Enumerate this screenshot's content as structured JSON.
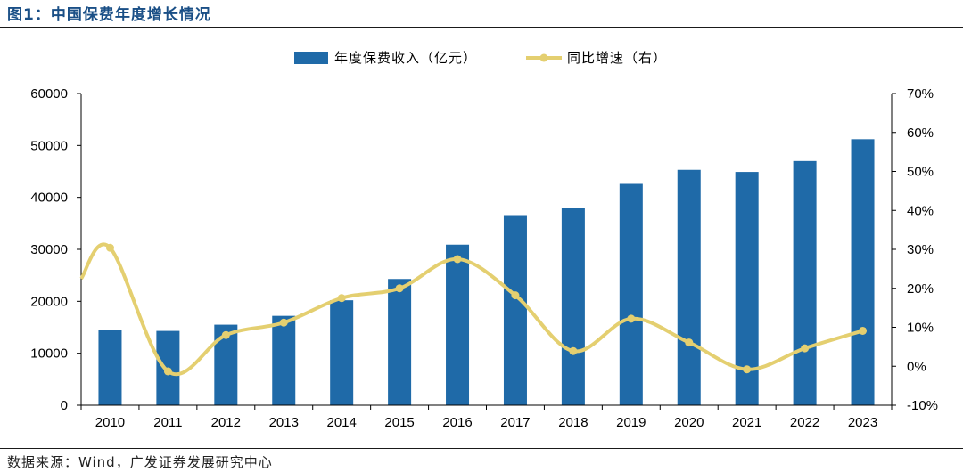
{
  "header": {
    "title": "图1：中国保费年度增长情况"
  },
  "footer": {
    "source": "数据来源：Wind，广发证券发展研究中心"
  },
  "chart_data": {
    "type": "bar+line",
    "title": "中国保费年度增长情况",
    "categories": [
      "2010",
      "2011",
      "2012",
      "2013",
      "2014",
      "2015",
      "2016",
      "2017",
      "2018",
      "2019",
      "2020",
      "2021",
      "2022",
      "2023"
    ],
    "series": [
      {
        "name": "年度保费收入（亿元）",
        "type": "bar",
        "axis": "left",
        "color": "#1f6aa8",
        "values": [
          14500,
          14300,
          15500,
          17200,
          20200,
          24300,
          30900,
          36600,
          38000,
          42600,
          45300,
          44900,
          47000,
          51200
        ]
      },
      {
        "name": "同比增速（右）",
        "type": "line",
        "axis": "right",
        "color": "#e4cf70",
        "values": [
          30.4,
          -1.3,
          8.0,
          11.2,
          17.5,
          20.0,
          27.5,
          18.2,
          3.9,
          12.2,
          6.1,
          -0.8,
          4.6,
          9.1
        ],
        "start_value": 22.5
      }
    ],
    "y_left": {
      "min": 0,
      "max": 60000,
      "ticks": [
        "0",
        "10000",
        "20000",
        "30000",
        "40000",
        "50000",
        "60000"
      ]
    },
    "y_right": {
      "min": -10,
      "max": 70,
      "ticks": [
        "-10%",
        "0%",
        "10%",
        "20%",
        "30%",
        "40%",
        "50%",
        "60%",
        "70%"
      ]
    },
    "legend": {
      "placement": "top-center"
    },
    "grid": false
  }
}
